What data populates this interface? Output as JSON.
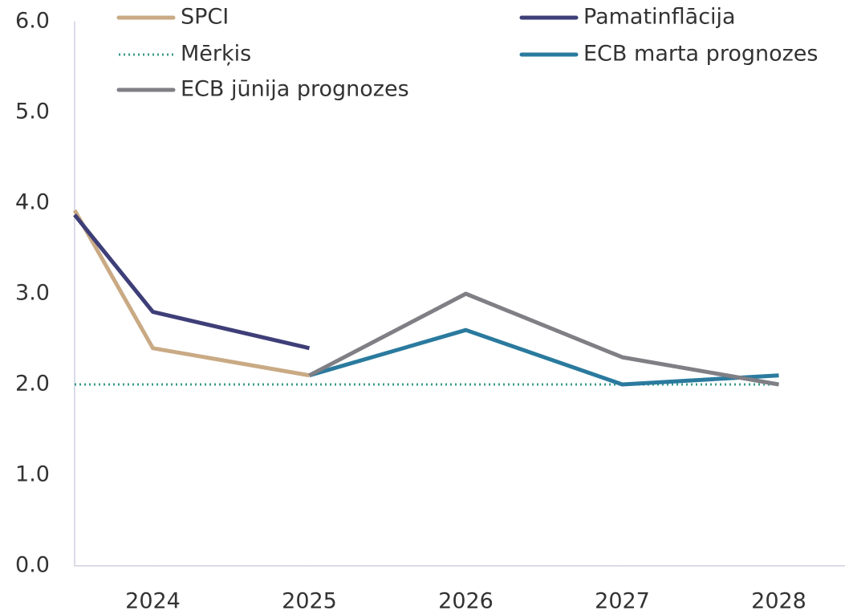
{
  "chart_data": {
    "type": "line",
    "xlim": [
      2023.5,
      2028.4
    ],
    "xticks": [
      2024,
      2025,
      2026,
      2027,
      2028
    ],
    "ylim": [
      0,
      6
    ],
    "yticks": [
      {
        "value": 0,
        "label": "0.0"
      },
      {
        "value": 1,
        "label": "1.0"
      },
      {
        "value": 2,
        "label": "2.0"
      },
      {
        "value": 3,
        "label": "3.0"
      },
      {
        "value": 4,
        "label": "4.0"
      },
      {
        "value": 5,
        "label": "5.0"
      },
      {
        "value": 6,
        "label": "6.0"
      }
    ],
    "grid": false,
    "legend": "top",
    "series": [
      {
        "name": "SPCI",
        "color": "#c9aa84",
        "x": [
          2023.5,
          2024,
          2025
        ],
        "values": [
          3.92,
          2.4,
          2.1
        ]
      },
      {
        "name": "Pamatinflācija",
        "color": "#3e3e78",
        "x": [
          2023.5,
          2024,
          2025
        ],
        "values": [
          3.87,
          2.8,
          2.4
        ]
      },
      {
        "name": "Mērķis",
        "color": "#3a9a8a",
        "style": "dotted",
        "x": [
          2023.5,
          2028
        ],
        "values": [
          2.0,
          2.0
        ]
      },
      {
        "name": "ECB marta prognozes",
        "color": "#2a7a9e",
        "x": [
          2025,
          2026,
          2027,
          2028
        ],
        "values": [
          2.1,
          2.6,
          2.0,
          2.1
        ]
      },
      {
        "name": "ECB jūnija prognozes",
        "color": "#7f7f85",
        "x": [
          2025,
          2026,
          2027,
          2028
        ],
        "values": [
          2.1,
          3.0,
          2.3,
          2.0
        ]
      }
    ]
  }
}
